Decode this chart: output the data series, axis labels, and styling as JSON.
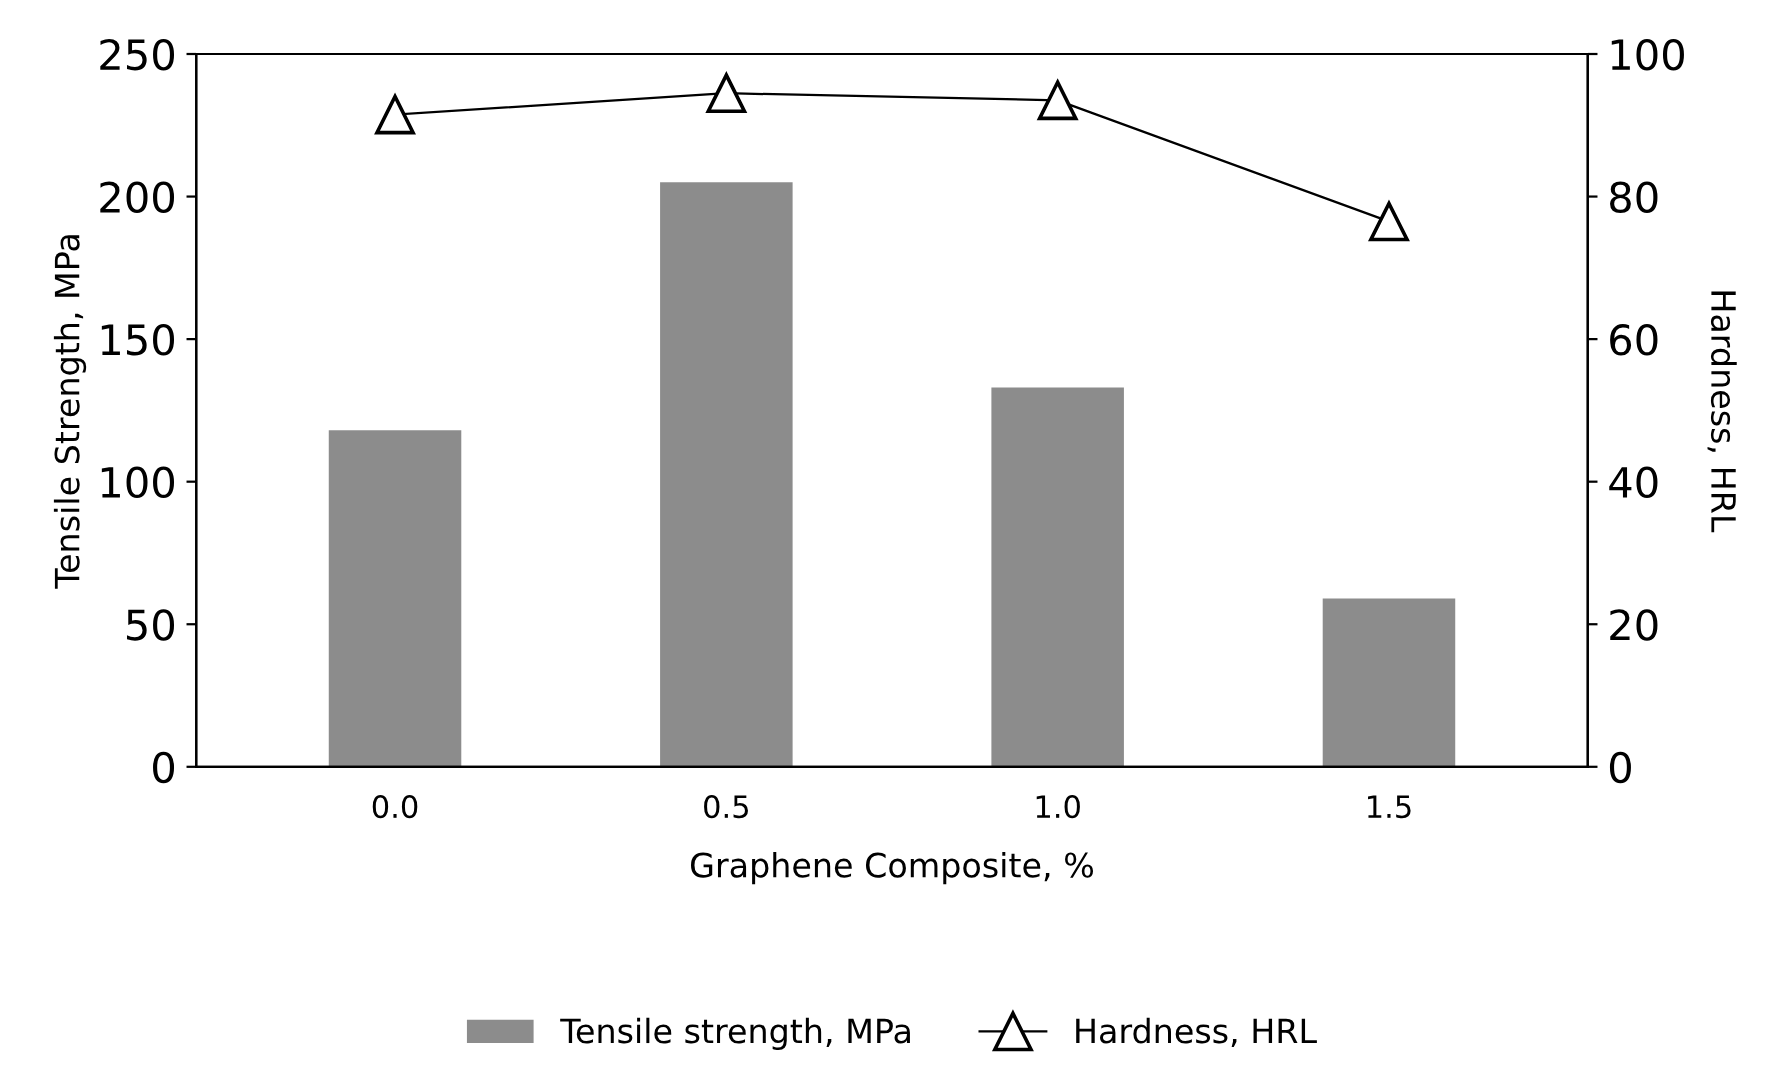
{
  "chart_data": {
    "type": "bar",
    "xlabel": "Graphene Composite, %",
    "ylabel": "Tensile Strength, MPa",
    "y2label": "Hardness, HRL",
    "categories": [
      "0.0",
      "0.5",
      "1.0",
      "1.5"
    ],
    "series": [
      {
        "name": "Tensile strength, MPa",
        "color": "#8c8c8c",
        "values": [
          118,
          205,
          133,
          59
        ]
      },
      {
        "name": "Hardness, HRL",
        "type": "line",
        "axis": "y2",
        "color": "#000000",
        "marker": "triangle",
        "values": [
          91.5,
          94.5,
          93.5,
          76.5
        ]
      }
    ],
    "ylim": [
      0,
      250
    ],
    "yticks": [
      0,
      50,
      100,
      150,
      200,
      250
    ],
    "y2lim": [
      0,
      100
    ],
    "y2ticks": [
      0,
      20,
      40,
      60,
      80,
      100
    ],
    "grid": false,
    "legend": "bottom"
  }
}
